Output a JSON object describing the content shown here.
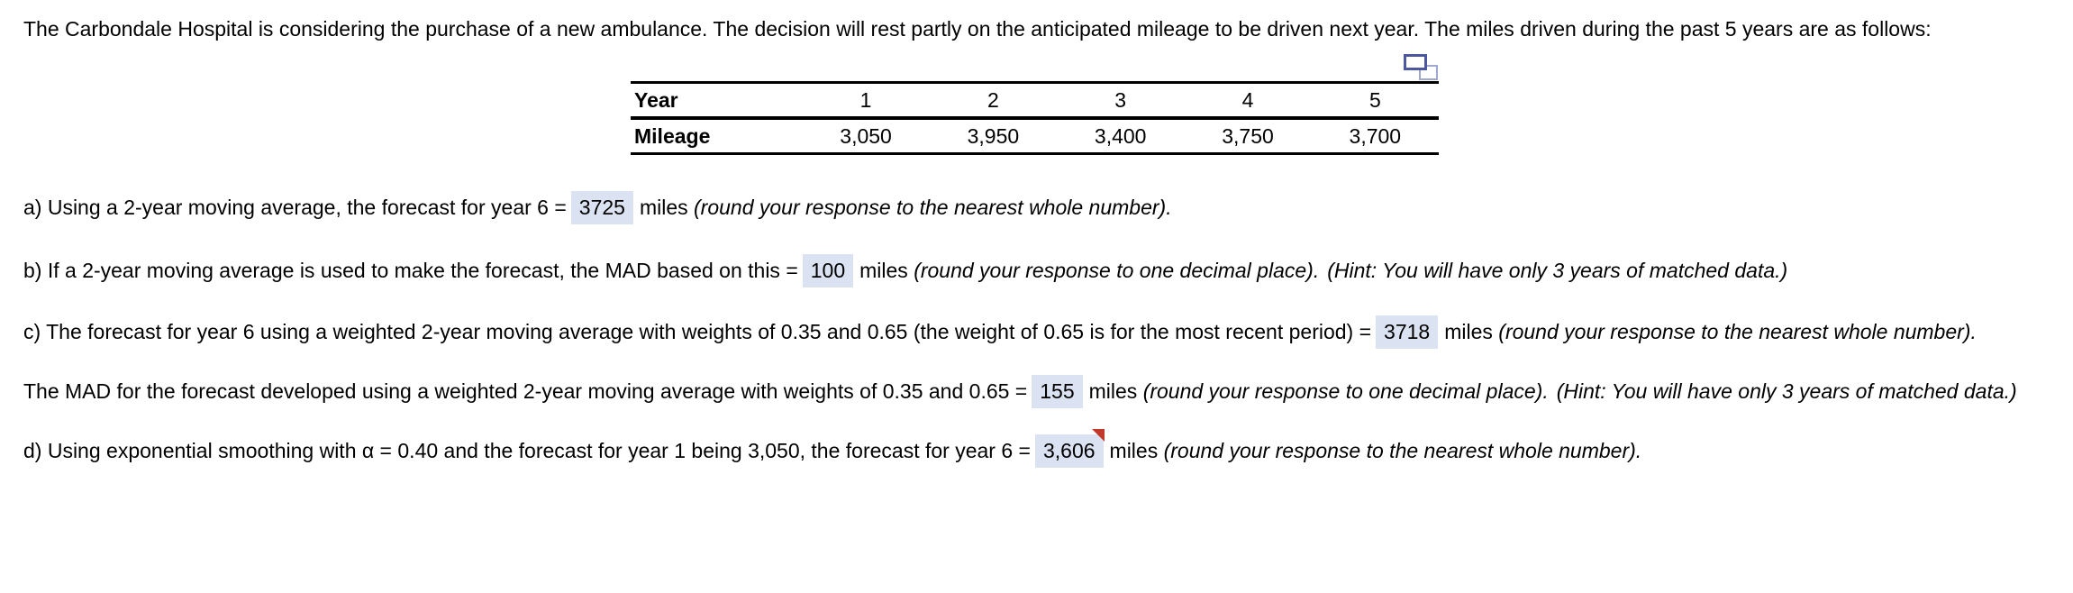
{
  "intro": {
    "text": "The Carbondale Hospital is considering the purchase of a new ambulance. The decision will rest partly on the anticipated mileage to be driven next year. The miles driven during the past 5 years are as follows:"
  },
  "table": {
    "popout_icon": "popout-table-icon",
    "header_row": {
      "label": "Year",
      "values": [
        "1",
        "2",
        "3",
        "4",
        "5"
      ]
    },
    "data_row": {
      "label": "Mileage",
      "values": [
        "3,050",
        "3,950",
        "3,400",
        "3,750",
        "3,700"
      ]
    }
  },
  "questions": {
    "a": {
      "prefix": "a) Using a 2-year moving average, the forecast for year 6 =",
      "value": "3725",
      "unit": "miles",
      "note": "(round your response to the nearest whole number)."
    },
    "b": {
      "prefix": "b) If a 2-year moving average is used to make the forecast, the MAD based on this =",
      "value": "100",
      "unit": "miles",
      "note": "(round your response to one decimal place).",
      "hint": "(Hint: You will have only 3 years of matched data.)"
    },
    "c": {
      "prefix": "c) The forecast for year 6 using a weighted 2-year moving average with weights of 0.35 and 0.65 (the weight of 0.65 is for the most recent period) =",
      "value": "3718",
      "unit": "miles",
      "note": "(round your response to the nearest whole number)."
    },
    "mad_weighted": {
      "prefix": "The MAD for the forecast developed using a weighted 2-year moving average with weights of 0.35 and 0.65 =",
      "value": "155",
      "unit": "miles",
      "note": "(round your response to one decimal place).",
      "hint": "(Hint: You will have only 3 years of matched data.)"
    },
    "d": {
      "prefix": "d) Using exponential smoothing with α = 0.40 and the forecast for year 1 being 3,050, the forecast for year 6 =",
      "value": "3,606",
      "unit": "miles",
      "note": "(round your response to the nearest whole number)."
    }
  },
  "colors": {
    "highlight": "#dbe2f1",
    "flag": "#c0392b",
    "icon_dark": "#4d579d",
    "icon_light": "#9fa8d1"
  }
}
